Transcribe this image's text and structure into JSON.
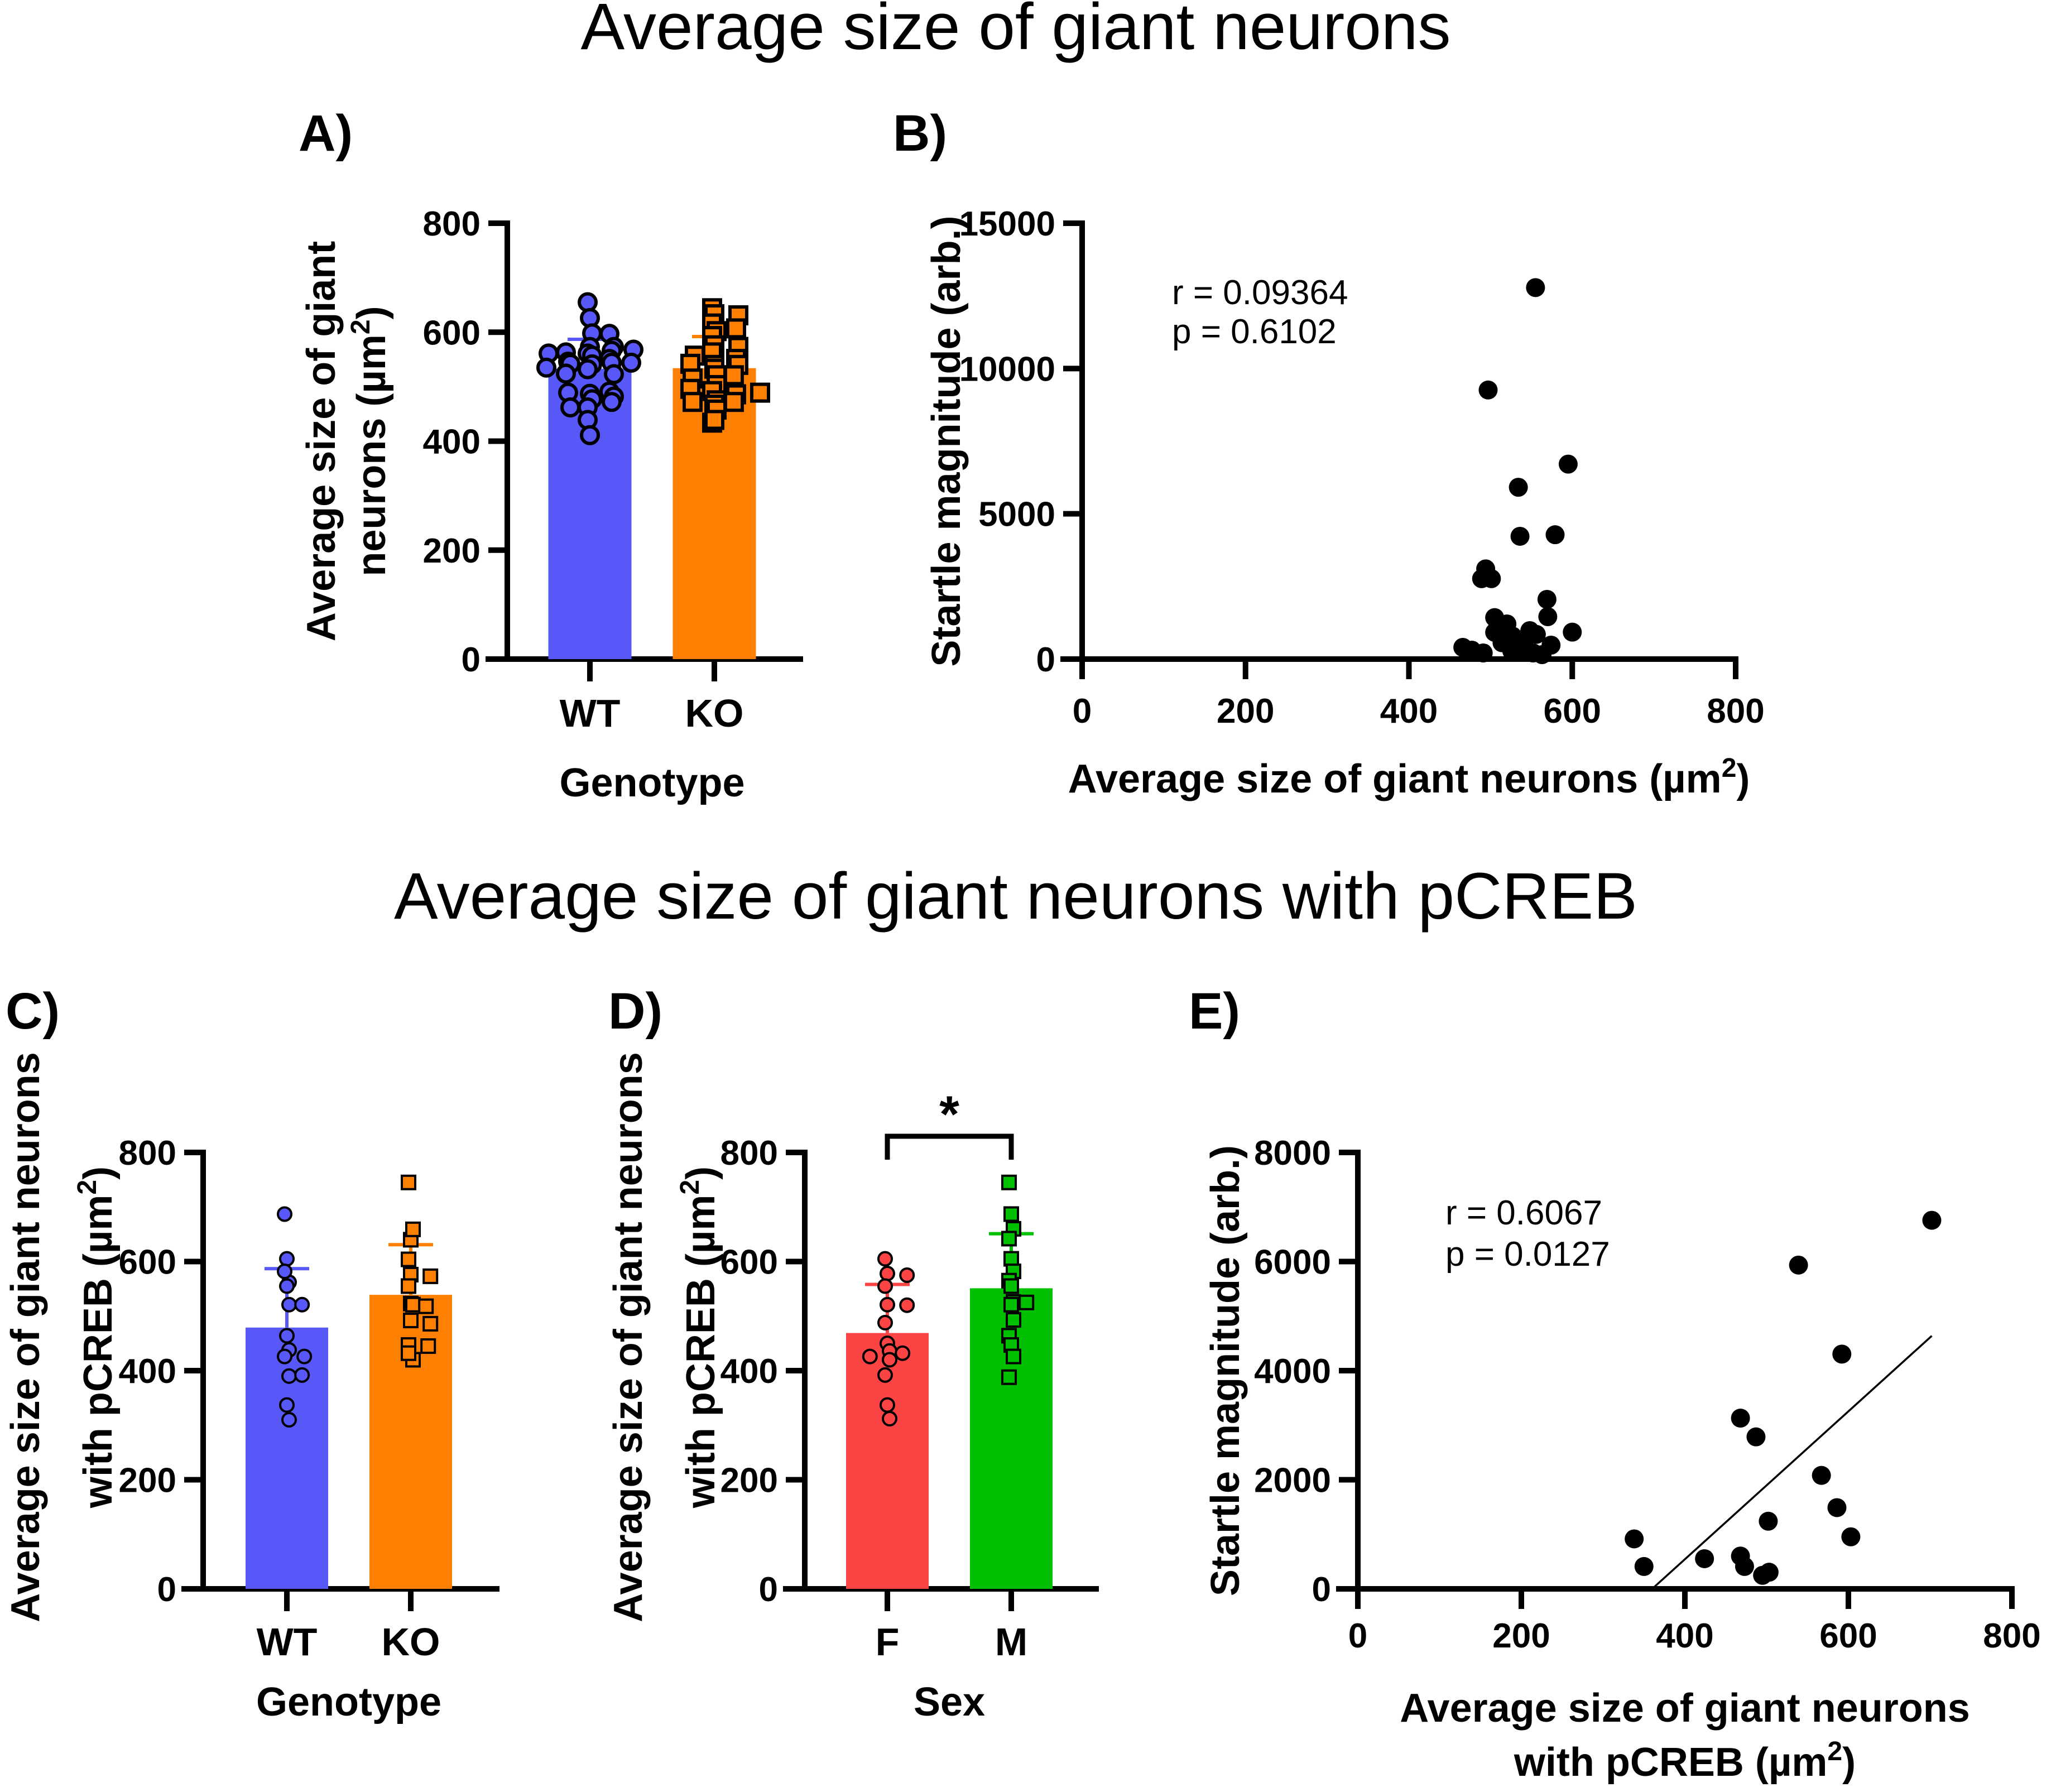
{
  "titles": {
    "top": "Average size of giant neurons",
    "bottom": "Average size of giant neurons with pCREB"
  },
  "colors": {
    "WT": "#5858F8",
    "KO": "#FF8000",
    "F": "#FC4444",
    "M": "#00C000",
    "scatter": "#000000"
  },
  "chart_data": [
    {
      "id": "A",
      "panel_label": "A)",
      "type": "bar",
      "title": "",
      "xlabel": "Genotype",
      "ylabel_lines": [
        "Average size of giant",
        "neurons (µm",
        "2",
        ")"
      ],
      "ylim": [
        0,
        800
      ],
      "yticks": [
        0,
        200,
        400,
        600,
        800
      ],
      "categories": [
        "WT",
        "KO"
      ],
      "markers": [
        "circle",
        "square"
      ],
      "series": [
        {
          "name": "WT",
          "mean": 533,
          "sd_upper": 587,
          "points": [
            655,
            626,
            598,
            597,
            573,
            573,
            561,
            566,
            557,
            563,
            568,
            561,
            551,
            546,
            541,
            532,
            544,
            542,
            544,
            535,
            523,
            524,
            487,
            477,
            491,
            489,
            482,
            462,
            472,
            462,
            439,
            411
          ]
        },
        {
          "name": "KO",
          "mean": 534,
          "sd_upper": 592,
          "points": [
            644,
            633,
            631,
            616,
            607,
            602,
            593,
            576,
            573,
            557,
            551,
            557,
            563,
            540,
            540,
            542,
            533,
            521,
            521,
            515,
            503,
            492,
            486,
            475,
            496,
            467,
            489,
            472,
            472,
            458,
            434,
            439
          ]
        }
      ]
    },
    {
      "id": "B",
      "panel_label": "B)",
      "type": "scatter",
      "xlabel": "Average size of giant neurons (µm",
      "xlabel_sup": "2",
      "xlabel_end": ")",
      "ylabel": "Startle magnitude (arb.)",
      "xlim": [
        0,
        800
      ],
      "ylim": [
        0,
        15000
      ],
      "xticks": [
        0,
        200,
        400,
        600,
        800
      ],
      "yticks": [
        0,
        5000,
        10000,
        15000
      ],
      "annotations": [
        "r = 0.09364",
        "p = 0.6102"
      ],
      "points": [
        [
          555,
          12785
        ],
        [
          497,
          9261
        ],
        [
          595,
          6710
        ],
        [
          534,
          5913
        ],
        [
          536,
          4226
        ],
        [
          579,
          4280
        ],
        [
          494,
          3105
        ],
        [
          489,
          2768
        ],
        [
          501,
          2768
        ],
        [
          569,
          2056
        ],
        [
          570,
          1460
        ],
        [
          600,
          928
        ],
        [
          505,
          1428
        ],
        [
          520,
          1210
        ],
        [
          505,
          922
        ],
        [
          548,
          980
        ],
        [
          556,
          851
        ],
        [
          514,
          563
        ],
        [
          527,
          788
        ],
        [
          526,
          275
        ],
        [
          574,
          480
        ],
        [
          466,
          403
        ],
        [
          477,
          307
        ],
        [
          491,
          211
        ],
        [
          543,
          346
        ],
        [
          552,
          211
        ],
        [
          563,
          154
        ],
        [
          539,
          596
        ]
      ]
    },
    {
      "id": "C",
      "panel_label": "C)",
      "type": "bar",
      "xlabel": "Genotype",
      "ylabel_lines": [
        "Average size of giant neurons",
        "with pCREB (µm",
        "2",
        ")"
      ],
      "ylim": [
        0,
        800
      ],
      "yticks": [
        0,
        200,
        400,
        600,
        800
      ],
      "categories": [
        "WT",
        "KO"
      ],
      "markers": [
        "circle",
        "square"
      ],
      "series": [
        {
          "name": "WT",
          "mean": 479,
          "sd_upper": 587,
          "points": [
            687,
            605,
            562,
            582,
            555,
            521,
            521,
            464,
            438,
            426,
            426,
            390,
            392,
            337,
            310
          ]
        },
        {
          "name": "KO",
          "mean": 539,
          "sd_upper": 631,
          "points": [
            745,
            640,
            659,
            604,
            576,
            573,
            555,
            523,
            521,
            518,
            492,
            486,
            447,
            445,
            420,
            432
          ]
        }
      ]
    },
    {
      "id": "D",
      "panel_label": "D)",
      "type": "bar",
      "xlabel": "Sex",
      "ylabel_lines": [
        "Average size of giant neurons",
        "with pCREB (µm",
        "2",
        ")"
      ],
      "ylim": [
        0,
        800
      ],
      "yticks": [
        0,
        200,
        400,
        600,
        800
      ],
      "categories": [
        "F",
        "M"
      ],
      "markers": [
        "circle",
        "square"
      ],
      "significance": "*",
      "series": [
        {
          "name": "F",
          "mean": 469,
          "sd_upper": 558,
          "points": [
            605,
            578,
            575,
            555,
            521,
            520,
            488,
            450,
            436,
            432,
            426,
            420,
            392,
            337,
            312
          ]
        },
        {
          "name": "M",
          "mean": 551,
          "sd_upper": 651,
          "points": [
            745,
            687,
            660,
            642,
            605,
            582,
            565,
            555,
            526,
            525,
            521,
            493,
            464,
            447,
            426,
            388
          ]
        }
      ]
    },
    {
      "id": "E",
      "panel_label": "E)",
      "type": "scatter",
      "xlabel_lines": [
        "Average size of giant neurons",
        "with pCREB (µm",
        "2",
        ")"
      ],
      "ylabel": "Startle magnitude (arb.)",
      "xlim": [
        0,
        800
      ],
      "ylim": [
        0,
        8000
      ],
      "xticks": [
        0,
        200,
        400,
        600,
        800
      ],
      "yticks": [
        0,
        2000,
        4000,
        6000,
        8000
      ],
      "annotations": [
        "r = 0.6067",
        "p = 0.0127"
      ],
      "regression": {
        "x": [
          360,
          702
        ],
        "y": [
          0,
          4637
        ]
      },
      "points": [
        [
          338,
          916
        ],
        [
          350,
          410
        ],
        [
          424,
          553
        ],
        [
          468,
          3130
        ],
        [
          468,
          601
        ],
        [
          473,
          410
        ],
        [
          487,
          2786
        ],
        [
          495,
          248
        ],
        [
          503,
          305
        ],
        [
          502,
          1240
        ],
        [
          539,
          5935
        ],
        [
          567,
          2080
        ],
        [
          586,
          1489
        ],
        [
          592,
          4303
        ],
        [
          603,
          954
        ],
        [
          702,
          6756
        ]
      ]
    }
  ]
}
